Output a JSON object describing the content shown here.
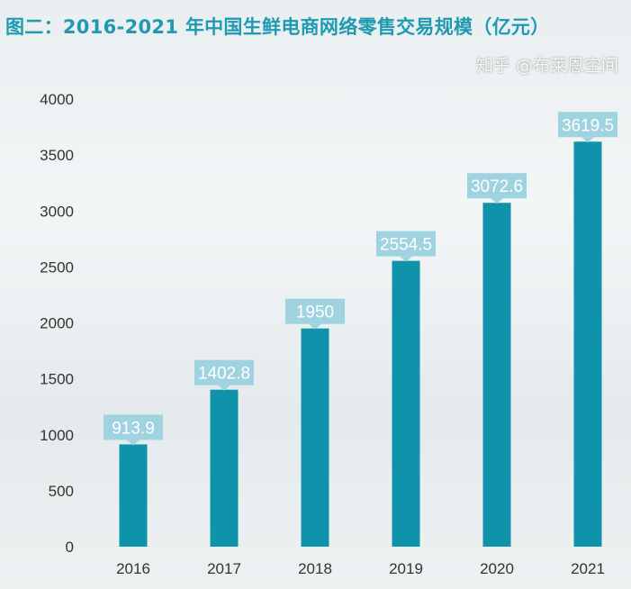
{
  "chart_data": {
    "type": "bar",
    "title": "图二：2016-2021 年中国生鲜电商网络零售交易规模（亿元）",
    "categories": [
      "2016",
      "2017",
      "2018",
      "2019",
      "2020",
      "2021"
    ],
    "values": [
      913.9,
      1402.8,
      1950,
      2554.5,
      3072.6,
      3619.5
    ],
    "data_labels": [
      "913.9",
      "1402.8",
      "1950",
      "2554.5",
      "3072.6",
      "3619.5"
    ],
    "yticks": [
      "0",
      "500",
      "1000",
      "1500",
      "2000",
      "2500",
      "3000",
      "3500",
      "4000"
    ],
    "ylim": [
      0,
      4000
    ],
    "xlabel": "",
    "ylabel": "",
    "grid": false,
    "colors": {
      "bar": "#0f93aa",
      "label_box": "#9fd3df",
      "label_text": "#ffffff",
      "title": "#1f9ab0"
    }
  },
  "watermark": "知乎 @布莱恩空间"
}
